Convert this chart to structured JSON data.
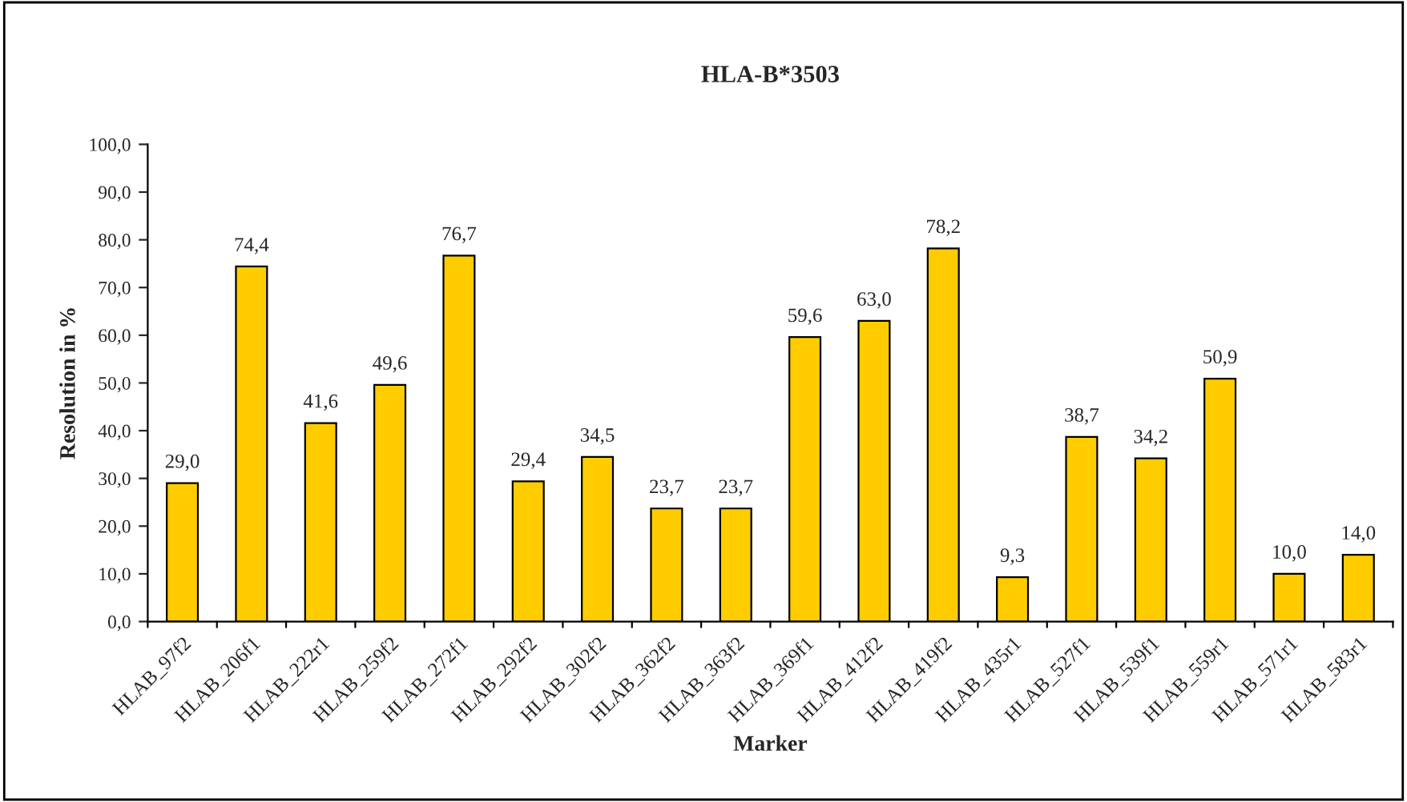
{
  "chart_data": {
    "type": "bar",
    "title": "HLA-B*3503",
    "xlabel": "Marker",
    "ylabel": "Resolution in %",
    "categories": [
      "HLAB_97f2",
      "HLAB_206f1",
      "HLAB_222r1",
      "HLAB_259f2",
      "HLAB_272f1",
      "HLAB_292f2",
      "HLAB_302f2",
      "HLAB_362f2",
      "HLAB_363f2",
      "HLAB_369f1",
      "HLAB_412f2",
      "HLAB_419f2",
      "HLAB_435r1",
      "HLAB_527f1",
      "HLAB_539f1",
      "HLAB_559r1",
      "HLAB_571r1",
      "HLAB_583r1"
    ],
    "values": [
      29.0,
      74.4,
      41.6,
      49.6,
      76.7,
      29.4,
      34.5,
      23.7,
      23.7,
      59.6,
      63.0,
      78.2,
      9.3,
      38.7,
      34.2,
      50.9,
      10.0,
      14.0
    ],
    "value_labels": [
      "29,0",
      "74,4",
      "41,6",
      "49,6",
      "76,7",
      "29,4",
      "34,5",
      "23,7",
      "23,7",
      "59,6",
      "63,0",
      "78,2",
      "9,3",
      "38,7",
      "34,2",
      "50,9",
      "10,0",
      "14,0"
    ],
    "color": "#ffcc00",
    "ylim": [
      0,
      100
    ],
    "yticks": [
      {
        "value": 0,
        "label": "0,0"
      },
      {
        "value": 10,
        "label": "10,0"
      },
      {
        "value": 20,
        "label": "20,0"
      },
      {
        "value": 30,
        "label": "30,0"
      },
      {
        "value": 40,
        "label": "40,0"
      },
      {
        "value": 50,
        "label": "50,0"
      },
      {
        "value": 60,
        "label": "60,0"
      },
      {
        "value": 70,
        "label": "70,0"
      },
      {
        "value": 80,
        "label": "80,0"
      },
      {
        "value": 90,
        "label": "90,0"
      },
      {
        "value": 100,
        "label": "100,0"
      }
    ],
    "grid": false,
    "legend": false
  }
}
